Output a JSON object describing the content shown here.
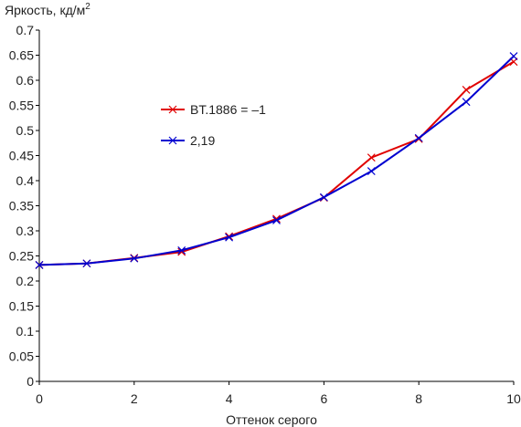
{
  "chart_data": {
    "type": "line",
    "title": "",
    "xlabel": "Оттенок серого",
    "ylabel_text": "Яркость, кд/м",
    "ylabel_sup": "2",
    "xlim": [
      0,
      10
    ],
    "ylim": [
      0,
      0.7
    ],
    "xticks": [
      "0",
      "2",
      "4",
      "6",
      "8",
      "10"
    ],
    "yticks": [
      "0",
      "0.05",
      "0.1",
      "0.15",
      "0.2",
      "0.25",
      "0.3",
      "0.35",
      "0.4",
      "0.45",
      "0.5",
      "0.55",
      "0.6",
      "0.65",
      "0.7"
    ],
    "grid": false,
    "legend_position": "center-left",
    "x": [
      0,
      1,
      2,
      3,
      4,
      5,
      6,
      7,
      8,
      9,
      10
    ],
    "series": [
      {
        "name": "BT.1886 = –1",
        "color": "#e00000",
        "marker": "x",
        "values": [
          0.232,
          0.235,
          0.246,
          0.258,
          0.289,
          0.324,
          0.366,
          0.446,
          0.483,
          0.581,
          0.637
        ]
      },
      {
        "name": "2,19",
        "color": "#0000d0",
        "marker": "x",
        "values": [
          0.232,
          0.235,
          0.245,
          0.261,
          0.287,
          0.321,
          0.367,
          0.419,
          0.485,
          0.557,
          0.648
        ]
      }
    ]
  }
}
